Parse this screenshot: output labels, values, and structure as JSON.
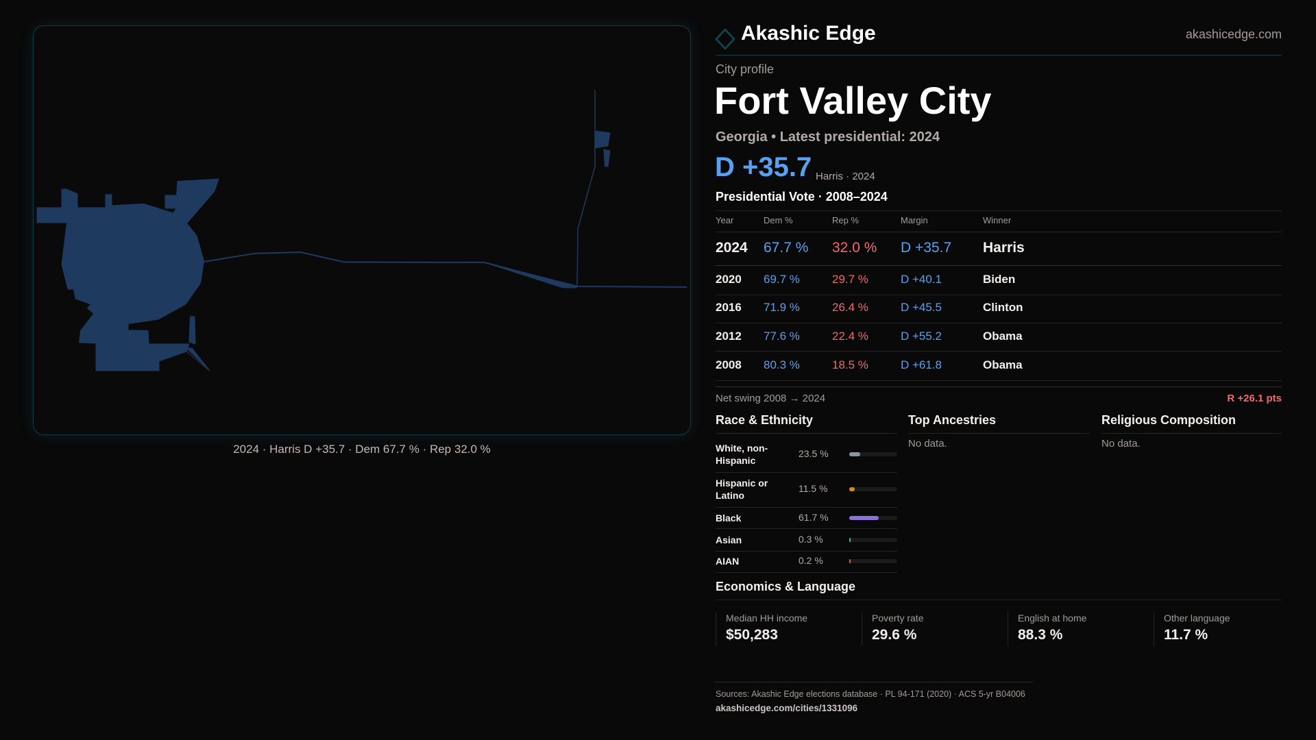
{
  "brand": {
    "name": "Akashic Edge",
    "site": "akashicedge.com"
  },
  "colors": {
    "dem": "#5aa0f0",
    "rep": "#f06a6a",
    "map_fill": "#1f3a5f",
    "accent": "#0f3d45"
  },
  "map": {
    "caption": "2024 · Harris D +35.7 · Dem 67.7 % · Rep 32.0 %"
  },
  "profile": {
    "kicker": "City profile",
    "title": "Fort Valley City",
    "subtitle": "Georgia • Latest presidential: 2024",
    "margin": "D +35.7",
    "margin_note": "Harris · 2024"
  },
  "votes": {
    "title": "Presidential Vote · 2008–2024",
    "headers": [
      "Year",
      "Dem %",
      "Rep %",
      "Margin",
      "Winner"
    ],
    "rows": [
      {
        "year": "2024",
        "dem": "67.7 %",
        "rep": "32.0 %",
        "margin": "D +35.7",
        "winner": "Harris"
      },
      {
        "year": "2020",
        "dem": "69.7 %",
        "rep": "29.7 %",
        "margin": "D +40.1",
        "winner": "Biden"
      },
      {
        "year": "2016",
        "dem": "71.9 %",
        "rep": "26.4 %",
        "margin": "D +45.5",
        "winner": "Clinton"
      },
      {
        "year": "2012",
        "dem": "77.6 %",
        "rep": "22.4 %",
        "margin": "D +55.2",
        "winner": "Obama"
      },
      {
        "year": "2008",
        "dem": "80.3 %",
        "rep": "18.5 %",
        "margin": "D +61.8",
        "winner": "Obama"
      }
    ],
    "swing_label": "Net swing 2008 → 2024",
    "swing_value": "R +26.1 pts"
  },
  "race": {
    "title": "Race & Ethnicity",
    "rows": [
      {
        "label1": "White, non-",
        "label2": "Hispanic",
        "pct": "23.5 %",
        "value": 23.5,
        "color": "#8a94a6"
      },
      {
        "label1": "Hispanic or",
        "label2": "Latino",
        "pct": "11.5 %",
        "value": 11.5,
        "color": "#d88a12"
      },
      {
        "label1": "Black",
        "label2": "",
        "pct": "61.7 %",
        "value": 61.7,
        "color": "#8a72d8"
      },
      {
        "label1": "Asian",
        "label2": "",
        "pct": "0.3 %",
        "value": 0.3,
        "color": "#2cc0a0"
      },
      {
        "label1": "AIAN",
        "label2": "",
        "pct": "0.2 %",
        "value": 0.2,
        "color": "#d06a20"
      }
    ]
  },
  "ancestries": {
    "title": "Top Ancestries",
    "empty": "No data."
  },
  "religion": {
    "title": "Religious Composition",
    "empty": "No data."
  },
  "economics": {
    "title": "Economics & Language",
    "stats": [
      {
        "label": "Median HH income",
        "value": "$50,283"
      },
      {
        "label": "Poverty rate",
        "value": "29.6 %"
      },
      {
        "label": "English at home",
        "value": "88.3 %"
      },
      {
        "label": "Other language",
        "value": "11.7 %"
      }
    ]
  },
  "footer": {
    "sources": "Sources: Akashic Edge elections database · PL 94-171 (2020) · ACS 5-yr B04006",
    "url": "akashicedge.com/cities/1331096"
  }
}
